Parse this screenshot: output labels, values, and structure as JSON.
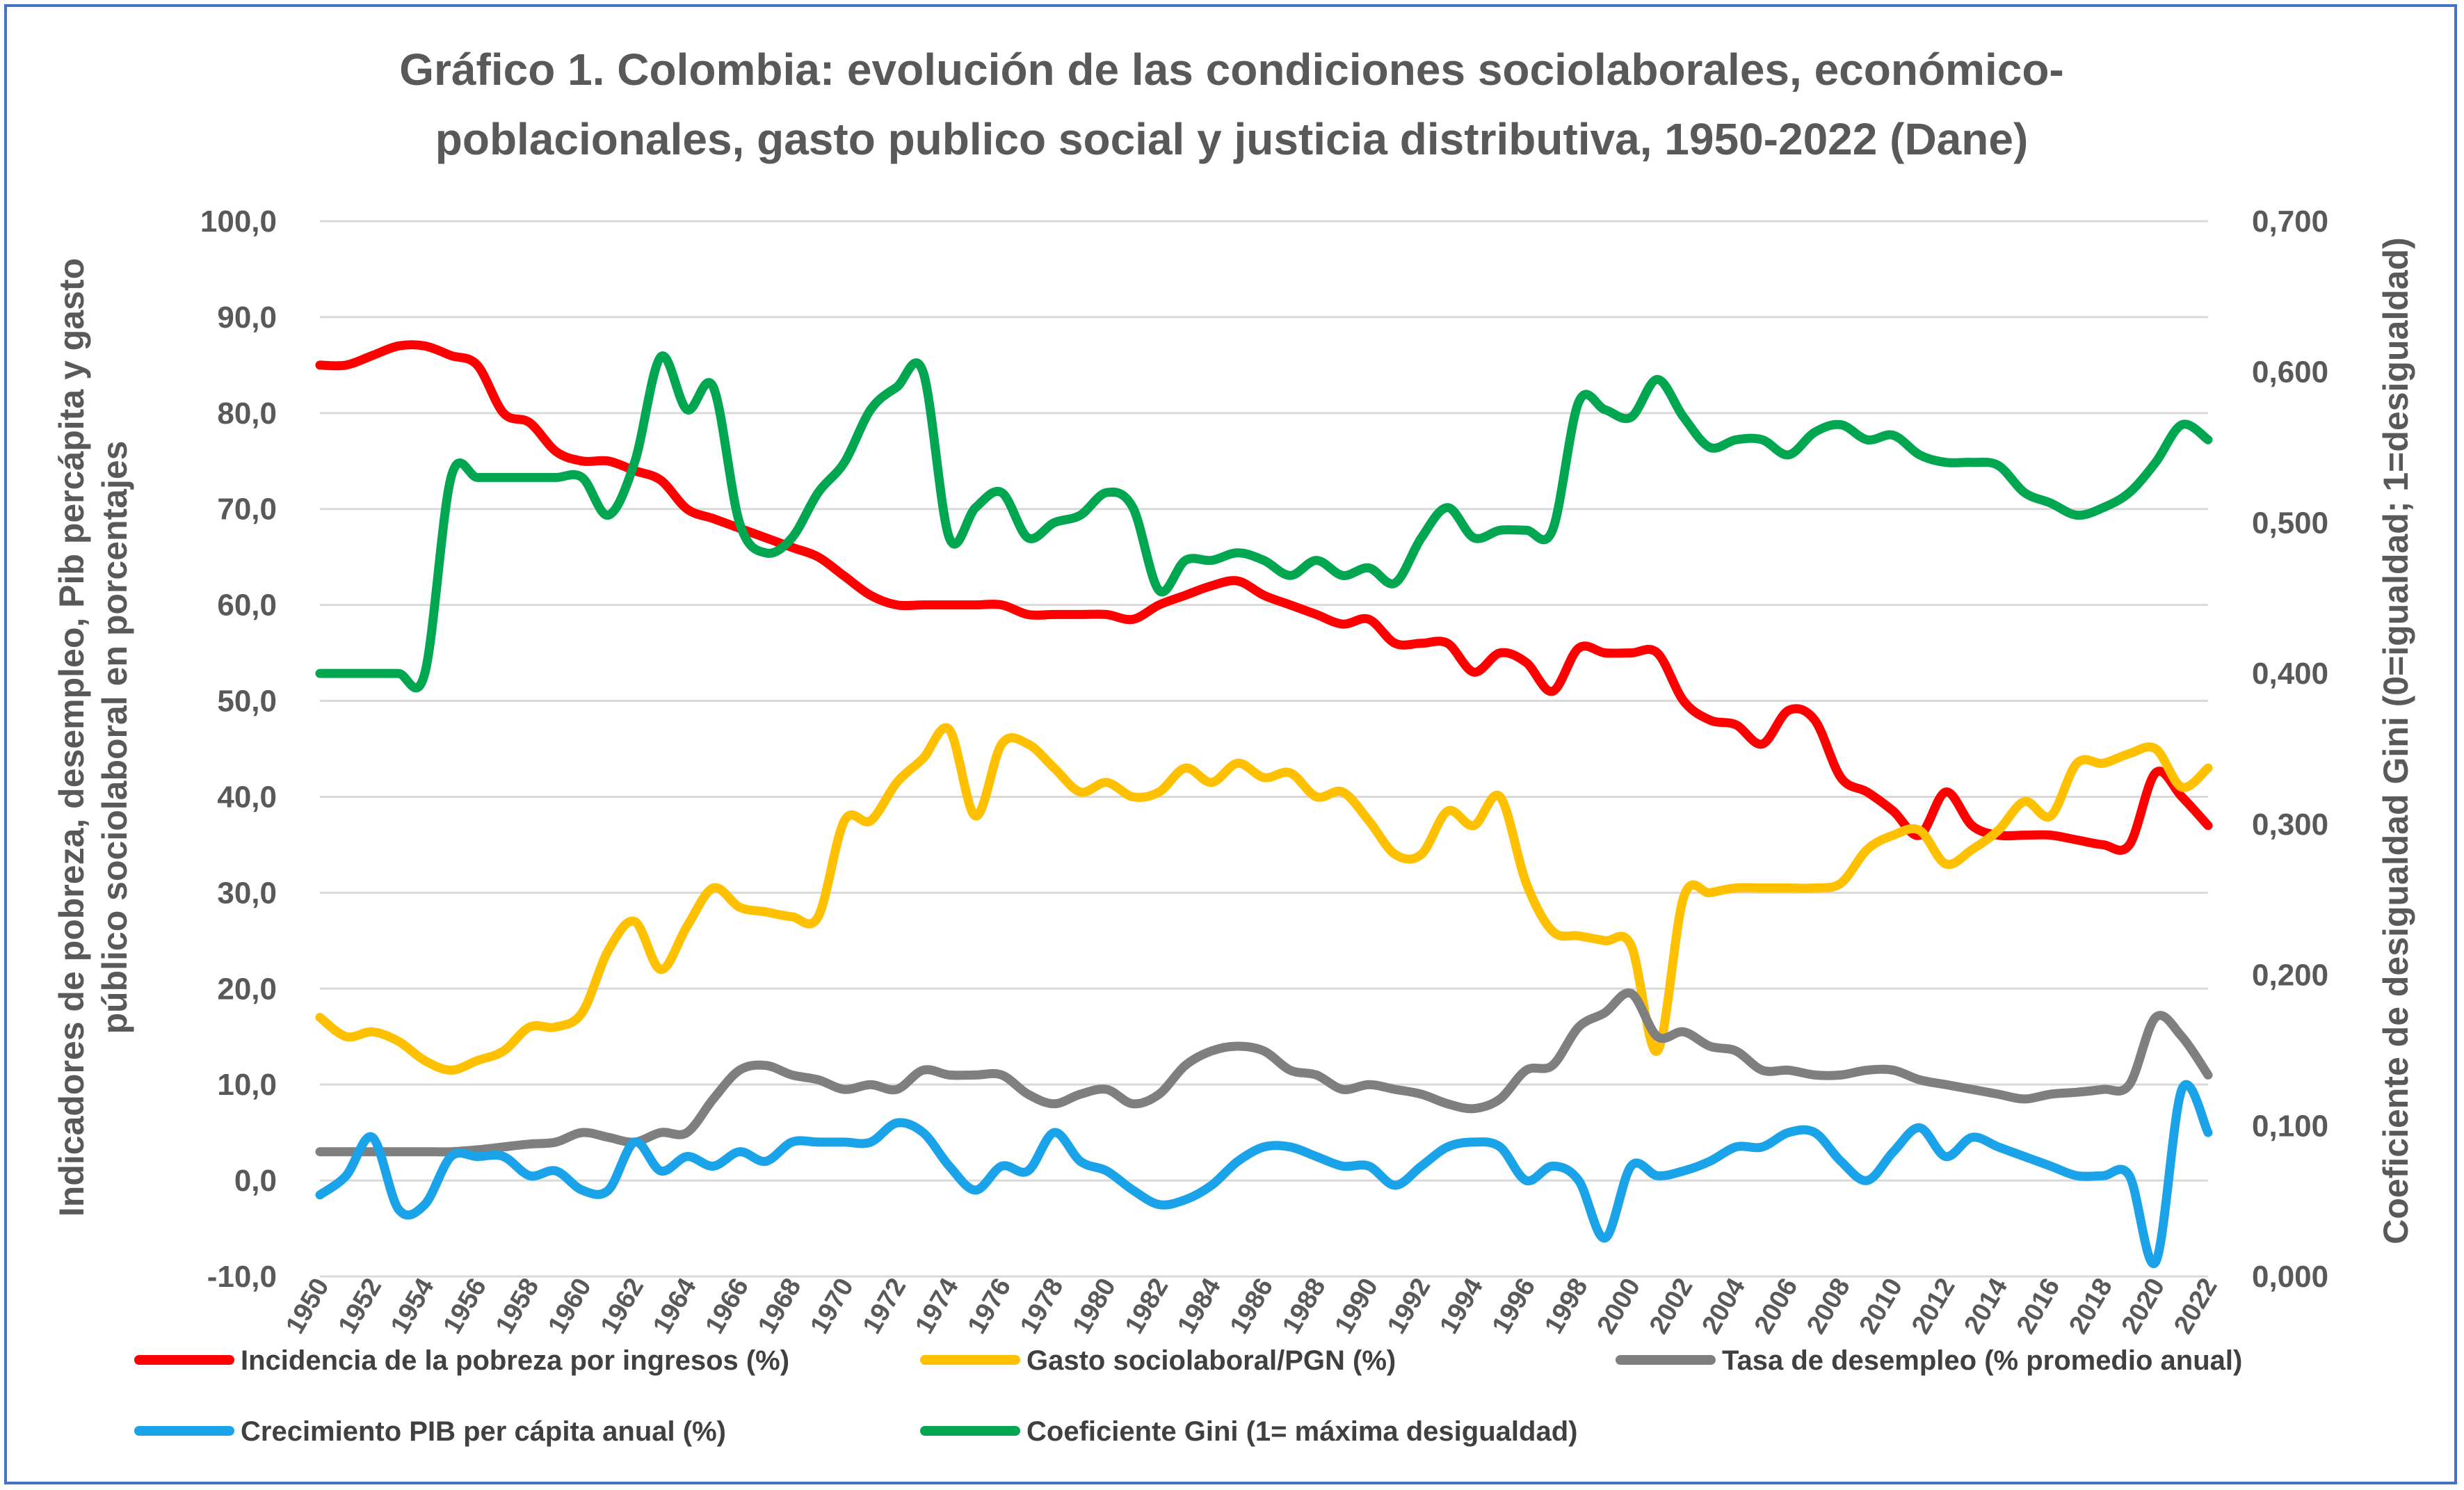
{
  "chart_data": {
    "type": "line",
    "title_lines": [
      "Gráfico 1. Colombia: evolución de las condiciones sociolaborales, económico-",
      "poblacionales, gasto publico social y justicia distributiva, 1950-2022 (Dane)"
    ],
    "ylabel_lines": [
      "Indicadores de pobreza, desempleo, Pib percápita y gasto",
      "público sociolaboral en porcentajes"
    ],
    "y2label": "Coeficiente de desigualdad Gini (0=igualdad; 1=desigualdad)",
    "ylim": [
      -10,
      100
    ],
    "y2lim": [
      0,
      0.7
    ],
    "grid": true,
    "legend_position": "bottom",
    "yticks": [
      "100,0",
      "90,0",
      "80,0",
      "70,0",
      "60,0",
      "50,0",
      "40,0",
      "30,0",
      "20,0",
      "10,0",
      "0,0",
      "-10,0"
    ],
    "y2ticks": [
      "0,700",
      "0,600",
      "0,500",
      "0,400",
      "0,300",
      "0,200",
      "0,100",
      "0,000"
    ],
    "xticks": [
      "1950",
      "1952",
      "1954",
      "1956",
      "1958",
      "1960",
      "1962",
      "1964",
      "1966",
      "1968",
      "1970",
      "1972",
      "1974",
      "1976",
      "1978",
      "1980",
      "1982",
      "1984",
      "1986",
      "1988",
      "1990",
      "1992",
      "1994",
      "1996",
      "1998",
      "2000",
      "2002",
      "2004",
      "2006",
      "2008",
      "2010",
      "2012",
      "2014",
      "2016",
      "2018",
      "2020",
      "2022"
    ],
    "x": [
      1950,
      1951,
      1952,
      1953,
      1954,
      1955,
      1956,
      1957,
      1958,
      1959,
      1960,
      1961,
      1962,
      1963,
      1964,
      1965,
      1966,
      1967,
      1968,
      1969,
      1970,
      1971,
      1972,
      1973,
      1974,
      1975,
      1976,
      1977,
      1978,
      1979,
      1980,
      1981,
      1982,
      1983,
      1984,
      1985,
      1986,
      1987,
      1988,
      1989,
      1990,
      1991,
      1992,
      1993,
      1994,
      1995,
      1996,
      1997,
      1998,
      1999,
      2000,
      2001,
      2002,
      2003,
      2004,
      2005,
      2006,
      2007,
      2008,
      2009,
      2010,
      2011,
      2012,
      2013,
      2014,
      2015,
      2016,
      2017,
      2018,
      2019,
      2020,
      2021,
      2022
    ],
    "series": [
      {
        "name": "Incidencia de la pobreza por ingresos (%)",
        "color": "#ff0000",
        "axis": "left",
        "values": [
          85,
          85,
          86,
          87,
          87,
          86,
          85,
          80,
          79,
          76,
          75,
          75,
          74,
          73,
          70,
          69,
          68,
          67,
          66,
          65,
          63,
          61,
          60,
          60,
          60,
          60,
          60,
          59,
          59,
          59,
          59,
          58.5,
          60,
          61,
          62,
          62.5,
          61,
          60,
          59,
          58,
          58.5,
          56,
          56,
          56,
          53,
          55,
          54,
          51,
          55.5,
          55,
          55,
          55,
          50,
          48,
          47.5,
          45.5,
          49,
          48,
          42,
          40.5,
          38.5,
          36,
          40.5,
          37,
          36,
          36,
          36,
          35.5,
          35,
          35,
          42.5,
          40,
          37
        ]
      },
      {
        "name": "Gasto sociolaboral/PGN (%)",
        "color": "#ffc000",
        "axis": "left",
        "values": [
          17,
          15,
          15.5,
          14.5,
          12.5,
          11.5,
          12.5,
          13.5,
          16,
          16,
          17.5,
          24,
          27,
          22,
          26.5,
          30.5,
          28.5,
          28,
          27.5,
          27.5,
          37.5,
          37.5,
          41.5,
          44,
          47,
          38,
          45.5,
          45.5,
          43,
          40.5,
          41.5,
          40,
          40.5,
          43,
          41.5,
          43.5,
          42,
          42.5,
          40,
          40.5,
          37.5,
          34,
          34,
          38.5,
          37,
          40,
          31,
          26,
          25.5,
          25,
          24.5,
          13.5,
          29.5,
          30,
          30.5,
          30.5,
          30.5,
          30.5,
          31,
          34.5,
          36,
          36.5,
          33,
          34.5,
          36.5,
          39.5,
          38,
          43.5,
          43.5,
          44.5,
          45,
          41,
          43
        ]
      },
      {
        "name": "Tasa de desempleo (% promedio anual)",
        "color": "#7f7f7f",
        "axis": "left",
        "values": [
          3,
          3,
          3,
          3,
          3,
          3,
          3.2,
          3.5,
          3.8,
          4,
          5,
          4.5,
          4,
          5,
          5,
          8.5,
          11.5,
          12,
          11,
          10.5,
          9.5,
          10,
          9.5,
          11.5,
          11,
          11,
          11,
          9,
          8,
          9,
          9.5,
          8,
          9,
          12,
          13.5,
          14,
          13.5,
          11.5,
          11,
          9.5,
          10,
          9.5,
          9,
          8,
          7.5,
          8.5,
          11.5,
          12,
          16,
          17.5,
          19.5,
          15,
          15.5,
          14,
          13.5,
          11.5,
          11.5,
          11,
          11,
          11.5,
          11.5,
          10.5,
          10,
          9.5,
          9,
          8.5,
          9,
          9.2,
          9.5,
          10,
          17,
          15,
          11
        ]
      },
      {
        "name": "Crecimiento PIB per cápita anual (%)",
        "color": "#1aa3e8",
        "axis": "left",
        "values": [
          -1.5,
          0.5,
          4.5,
          -3,
          -2.5,
          2.5,
          2.5,
          2.5,
          0.5,
          1,
          -1,
          -1,
          4,
          1,
          2.5,
          1.5,
          3,
          2,
          4,
          4,
          4,
          4,
          6,
          5,
          1.5,
          -1,
          1.5,
          1,
          5,
          2,
          1,
          -1,
          -2.5,
          -2,
          -0.5,
          2,
          3.5,
          3.5,
          2.5,
          1.5,
          1.5,
          -0.5,
          1.5,
          3.5,
          4,
          3.5,
          0,
          1.5,
          0,
          -6,
          1.5,
          0.5,
          1,
          2,
          3.5,
          3.5,
          5,
          5,
          2,
          0,
          3,
          5.5,
          2.5,
          4.5,
          3.5,
          2.5,
          1.5,
          0.5,
          0.5,
          0.5,
          -8.5,
          9.5,
          5
        ]
      },
      {
        "name": "Coeficiente  Gini (1= máxima desigualdad)",
        "color": "#00a650",
        "axis": "right",
        "values": [
          0.4,
          0.4,
          0.4,
          0.4,
          0.4,
          0.53,
          0.53,
          0.53,
          0.53,
          0.53,
          0.53,
          0.505,
          0.54,
          0.61,
          0.575,
          0.59,
          0.5,
          0.48,
          0.49,
          0.52,
          0.54,
          0.575,
          0.59,
          0.6,
          0.49,
          0.51,
          0.52,
          0.49,
          0.5,
          0.505,
          0.52,
          0.51,
          0.455,
          0.475,
          0.475,
          0.48,
          0.475,
          0.465,
          0.475,
          0.465,
          0.47,
          0.46,
          0.49,
          0.51,
          0.49,
          0.495,
          0.495,
          0.495,
          0.58,
          0.575,
          0.57,
          0.595,
          0.57,
          0.55,
          0.555,
          0.555,
          0.545,
          0.56,
          0.565,
          0.555,
          0.558,
          0.545,
          0.54,
          0.54,
          0.538,
          0.52,
          0.513,
          0.505,
          0.51,
          0.52,
          0.54,
          0.565,
          0.555
        ]
      }
    ]
  }
}
